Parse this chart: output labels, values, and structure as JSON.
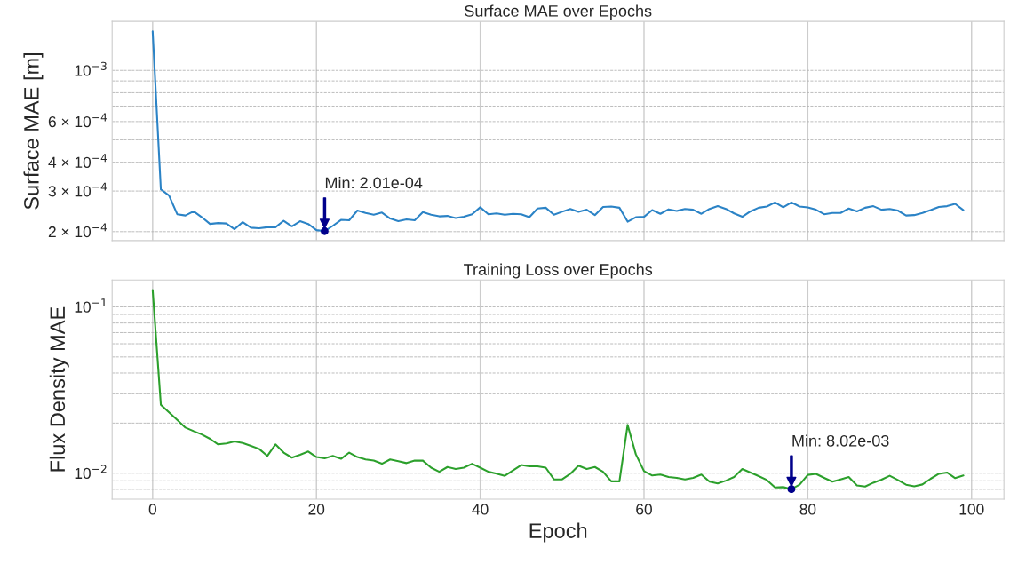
{
  "chart_data": [
    {
      "type": "line",
      "title": "Surface MAE over Epochs",
      "ylabel": "Surface MAE [m]",
      "log": "y",
      "grid": true,
      "tick_labels": "y",
      "x": [
        0,
        1,
        2,
        3,
        4,
        5,
        6,
        7,
        8,
        9,
        10,
        11,
        12,
        13,
        14,
        15,
        16,
        17,
        18,
        19,
        20,
        21,
        22,
        23,
        24,
        25,
        26,
        27,
        28,
        29,
        30,
        31,
        32,
        33,
        34,
        35,
        36,
        37,
        38,
        39,
        40,
        41,
        42,
        43,
        44,
        45,
        46,
        47,
        48,
        49,
        50,
        51,
        52,
        53,
        54,
        55,
        56,
        57,
        58,
        59,
        60,
        61,
        62,
        63,
        64,
        65,
        66,
        67,
        68,
        69,
        70,
        71,
        72,
        73,
        74,
        75,
        76,
        77,
        78,
        79,
        80,
        81,
        82,
        83,
        84,
        85,
        86,
        87,
        88,
        89,
        90,
        91,
        92,
        93,
        94,
        95,
        96,
        97,
        98,
        99
      ],
      "xlim": [
        -4.95,
        103.95
      ],
      "xticks": [
        0,
        20,
        40,
        60,
        80,
        100
      ],
      "ylim": [
        0.000183,
        0.00163
      ],
      "yticks": [
        {
          "value": 0.0002,
          "label": "2 × 10$^{−4}$"
        },
        {
          "value": 0.0003,
          "label": "3 × 10$^{−4}$"
        },
        {
          "value": 0.0004,
          "label": "4 × 10$^{−4}$"
        },
        {
          "value": 0.0005,
          "label": null
        },
        {
          "value": 0.0006,
          "label": "6 × 10$^{−4}$"
        },
        {
          "value": 0.0007,
          "label": null
        },
        {
          "value": 0.0008,
          "label": null
        },
        {
          "value": 0.0009,
          "label": null
        },
        {
          "value": 0.001,
          "label": "10$^{−3}$"
        }
      ],
      "series": [
        {
          "color": "#2b83c6",
          "values": [
            0.001475,
            0.000305,
            0.000287,
            0.000238,
            0.000235,
            0.000245,
            0.000231,
            0.000216,
            0.000218,
            0.000217,
            0.000205,
            0.00022,
            0.000208,
            0.000207,
            0.000209,
            0.000209,
            0.000223,
            0.000211,
            0.000222,
            0.000216,
            0.000203,
            0.000201,
            0.000212,
            0.000225,
            0.000224,
            0.000247,
            0.000241,
            0.000237,
            0.000242,
            0.000228,
            0.000222,
            0.000226,
            0.000224,
            0.000243,
            0.000237,
            0.000233,
            0.000234,
            0.000229,
            0.000232,
            0.000238,
            0.000255,
            0.000238,
            0.00024,
            0.000237,
            0.000239,
            0.000238,
            0.000231,
            0.000252,
            0.000254,
            0.000237,
            0.000244,
            0.000251,
            0.000244,
            0.000249,
            0.000236,
            0.000256,
            0.000257,
            0.000254,
            0.000221,
            0.000231,
            0.000232,
            0.000248,
            0.000239,
            0.00025,
            0.000246,
            0.000251,
            0.000249,
            0.000239,
            0.000251,
            0.000258,
            0.000251,
            0.00024,
            0.000232,
            0.000245,
            0.000254,
            0.000257,
            0.000268,
            0.000255,
            0.000268,
            0.000257,
            0.000255,
            0.000249,
            0.000238,
            0.000241,
            0.000241,
            0.000252,
            0.000245,
            0.000254,
            0.000258,
            0.000249,
            0.000251,
            0.000247,
            0.000235,
            0.000236,
            0.000241,
            0.000248,
            0.000256,
            0.000258,
            0.000264,
            0.000248
          ]
        },
        {
          "type": "scatter",
          "color": "#00008b",
          "marker": "circle",
          "x": [
            21
          ],
          "values": [
            0.000201
          ]
        }
      ],
      "annotations": [
        {
          "text": "Min: 2.01e-04",
          "x": 21,
          "y": 0.000201
        }
      ]
    },
    {
      "type": "line",
      "title": "Training Loss over Epochs",
      "ylabel": "Flux Density MAE",
      "xlabel": "Epoch",
      "log": "y",
      "grid": true,
      "x": [
        0,
        1,
        2,
        3,
        4,
        5,
        6,
        7,
        8,
        9,
        10,
        11,
        12,
        13,
        14,
        15,
        16,
        17,
        18,
        19,
        20,
        21,
        22,
        23,
        24,
        25,
        26,
        27,
        28,
        29,
        30,
        31,
        32,
        33,
        34,
        35,
        36,
        37,
        38,
        39,
        40,
        41,
        42,
        43,
        44,
        45,
        46,
        47,
        48,
        49,
        50,
        51,
        52,
        53,
        54,
        55,
        56,
        57,
        58,
        59,
        60,
        61,
        62,
        63,
        64,
        65,
        66,
        67,
        68,
        69,
        70,
        71,
        72,
        73,
        74,
        75,
        76,
        77,
        78,
        79,
        80,
        81,
        82,
        83,
        84,
        85,
        86,
        87,
        88,
        89,
        90,
        91,
        92,
        93,
        94,
        95,
        96,
        97,
        98,
        99
      ],
      "xlim": [
        -4.95,
        103.95
      ],
      "xticks": [
        0,
        20,
        40,
        60,
        80,
        100
      ],
      "ylim": [
        0.00698,
        0.145
      ],
      "yticks": [
        {
          "value": 0.008,
          "label": null
        },
        {
          "value": 0.009,
          "label": null
        },
        {
          "value": 0.01,
          "label": "10$^{−2}$"
        },
        {
          "value": 0.02,
          "label": null
        },
        {
          "value": 0.03,
          "label": null
        },
        {
          "value": 0.04,
          "label": null
        },
        {
          "value": 0.05,
          "label": null
        },
        {
          "value": 0.06,
          "label": null
        },
        {
          "value": 0.07,
          "label": null
        },
        {
          "value": 0.08,
          "label": null
        },
        {
          "value": 0.09,
          "label": null
        },
        {
          "value": 0.1,
          "label": "10$^{−1}$"
        }
      ],
      "series": [
        {
          "color": "#2ca02c",
          "values": [
            0.1264,
            0.0258,
            0.0232,
            0.0209,
            0.0188,
            0.0179,
            0.0171,
            0.0161,
            0.0149,
            0.0151,
            0.0155,
            0.0152,
            0.0146,
            0.014,
            0.0127,
            0.0149,
            0.0133,
            0.0124,
            0.0129,
            0.0135,
            0.0125,
            0.0123,
            0.0127,
            0.0122,
            0.0133,
            0.0125,
            0.0121,
            0.0119,
            0.0114,
            0.0121,
            0.0118,
            0.0115,
            0.0119,
            0.0119,
            0.0108,
            0.0102,
            0.0109,
            0.0106,
            0.0108,
            0.0114,
            0.0108,
            0.0102,
            0.00995,
            0.00964,
            0.0104,
            0.0112,
            0.011,
            0.011,
            0.0108,
            0.00918,
            0.00918,
            0.00991,
            0.0111,
            0.0106,
            0.0109,
            0.0102,
            0.00894,
            0.00894,
            0.0195,
            0.013,
            0.0103,
            0.00969,
            0.00982,
            0.00948,
            0.00938,
            0.00918,
            0.00938,
            0.00982,
            0.00889,
            0.00869,
            0.00902,
            0.00948,
            0.0106,
            0.0101,
            0.0096,
            0.0091,
            0.00822,
            0.00825,
            0.00802,
            0.00853,
            0.00977,
            0.00991,
            0.00938,
            0.00889,
            0.00918,
            0.00948,
            0.00845,
            0.00831,
            0.00877,
            0.00914,
            0.00965,
            0.0091,
            0.00853,
            0.00834,
            0.00856,
            0.00926,
            0.00991,
            0.0101,
            0.00934,
            0.00969
          ]
        },
        {
          "type": "scatter",
          "color": "#00008b",
          "marker": "circle",
          "x": [
            78
          ],
          "values": [
            0.00802
          ]
        }
      ],
      "annotations": [
        {
          "text": "Min: 8.02e-03",
          "x": 78,
          "y": 0.00802
        }
      ]
    }
  ]
}
